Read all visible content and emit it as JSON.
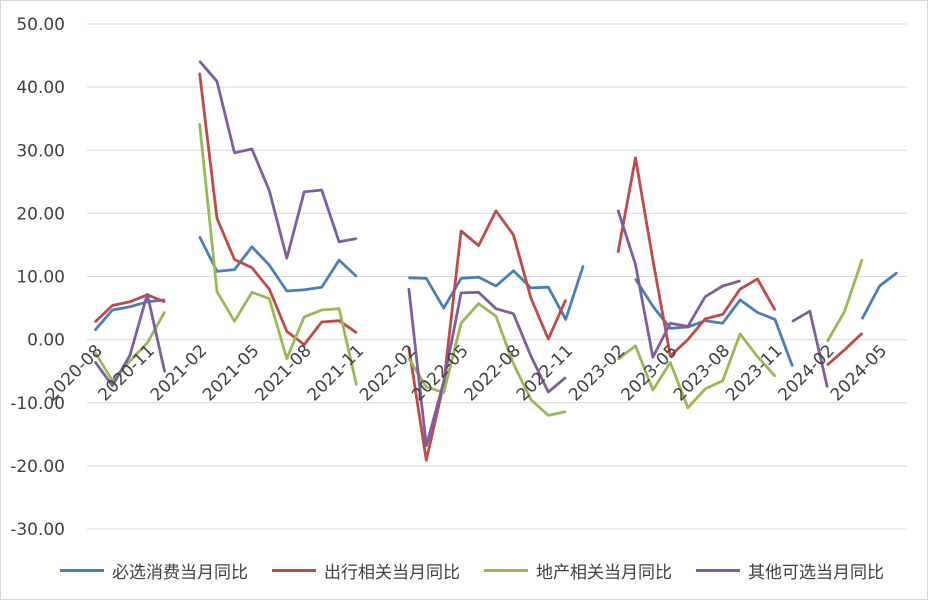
{
  "chart_data": {
    "type": "line",
    "ylim": [
      -30,
      50
    ],
    "ytick_step": 10,
    "ytick_labels": [
      "50.00",
      "40.00",
      "30.00",
      "20.00",
      "10.00",
      "0.00",
      "-10.00",
      "-20.00",
      "-30.00"
    ],
    "xtick_labels": [
      "2020-08",
      "2020-11",
      "2021-02",
      "2021-05",
      "2021-08",
      "2021-11",
      "2022-02",
      "2022-05",
      "2022-08",
      "2022-11",
      "2023-02",
      "2023-05",
      "2023-08",
      "2023-11",
      "2024-02",
      "2024-05"
    ],
    "x": [
      "2020-08",
      "2020-09",
      "2020-10",
      "2020-11",
      "2020-12",
      "2021-01",
      "2021-02",
      "2021-03",
      "2021-04",
      "2021-05",
      "2021-06",
      "2021-07",
      "2021-08",
      "2021-09",
      "2021-10",
      "2021-11",
      "2021-12",
      "2022-01",
      "2022-02",
      "2022-03",
      "2022-04",
      "2022-05",
      "2022-06",
      "2022-07",
      "2022-08",
      "2022-09",
      "2022-10",
      "2022-11",
      "2022-12",
      "2023-01",
      "2023-02",
      "2023-03",
      "2023-04",
      "2023-05",
      "2023-06",
      "2023-07",
      "2023-08",
      "2023-09",
      "2023-10",
      "2023-11",
      "2023-12",
      "2024-01",
      "2024-02",
      "2024-03",
      "2024-04",
      "2024-05",
      "2024-06"
    ],
    "gridlines": true,
    "legend_position": "bottom",
    "series": [
      {
        "name": "必选消费当月同比",
        "color": "#4a7ebb",
        "values": [
          1.5,
          4.7,
          5.2,
          6.0,
          6.3,
          null,
          16.3,
          10.8,
          11.1,
          14.7,
          11.8,
          7.7,
          7.9,
          8.3,
          12.6,
          10.0,
          null,
          null,
          9.8,
          9.7,
          5.0,
          9.7,
          9.9,
          8.5,
          10.9,
          8.2,
          8.3,
          3.2,
          11.7,
          null,
          null,
          9.6,
          5.3,
          1.8,
          2.0,
          3.0,
          2.6,
          6.3,
          4.3,
          3.2,
          -4.2,
          null,
          null,
          null,
          3.3,
          8.5,
          10.6
        ]
      },
      {
        "name": "出行相关当月同比",
        "color": "#be4b48",
        "values": [
          2.8,
          5.4,
          6.0,
          7.1,
          6.0,
          null,
          42.2,
          19.2,
          12.7,
          11.4,
          8.0,
          1.3,
          -0.8,
          2.8,
          3.0,
          1.1,
          null,
          null,
          -1.2,
          -19.1,
          -7.0,
          17.2,
          14.9,
          20.4,
          16.6,
          6.6,
          0.1,
          6.3,
          null,
          null,
          13.8,
          28.8,
          12.6,
          -2.6,
          0.0,
          3.3,
          4.0,
          8.0,
          9.6,
          4.7,
          null,
          null,
          -4.0,
          -1.6,
          1.0,
          null,
          null
        ]
      },
      {
        "name": "地产相关当月同比",
        "color": "#98b954",
        "values": [
          -2.0,
          -6.5,
          -3.4,
          -0.5,
          4.4,
          null,
          34.2,
          7.6,
          2.9,
          7.5,
          6.5,
          -3.0,
          3.6,
          4.7,
          4.9,
          -7.2,
          null,
          null,
          -3.0,
          -7.5,
          -8.4,
          2.6,
          5.7,
          3.7,
          -3.8,
          -9.5,
          -12.0,
          -11.4,
          null,
          null,
          -3.1,
          -1.0,
          -8.0,
          -3.6,
          -10.8,
          -7.8,
          -6.5,
          0.9,
          -2.7,
          -5.8,
          null,
          null,
          -0.3,
          4.5,
          12.7,
          null,
          null
        ]
      },
      {
        "name": "其他可选当月同比",
        "color": "#7d5fa0",
        "values": [
          -3.5,
          -7.3,
          -2.5,
          7.2,
          -5.1,
          null,
          44.1,
          40.9,
          29.6,
          30.2,
          23.6,
          12.9,
          23.4,
          23.7,
          15.5,
          16.0,
          null,
          null,
          8.1,
          -16.8,
          -6.7,
          7.4,
          7.5,
          4.9,
          4.1,
          -2.6,
          -8.3,
          -6.0,
          null,
          null,
          20.5,
          11.9,
          -2.8,
          2.6,
          2.1,
          6.8,
          8.5,
          9.3,
          null,
          null,
          2.9,
          4.5,
          -7.5,
          null,
          null,
          null,
          null
        ]
      }
    ]
  }
}
